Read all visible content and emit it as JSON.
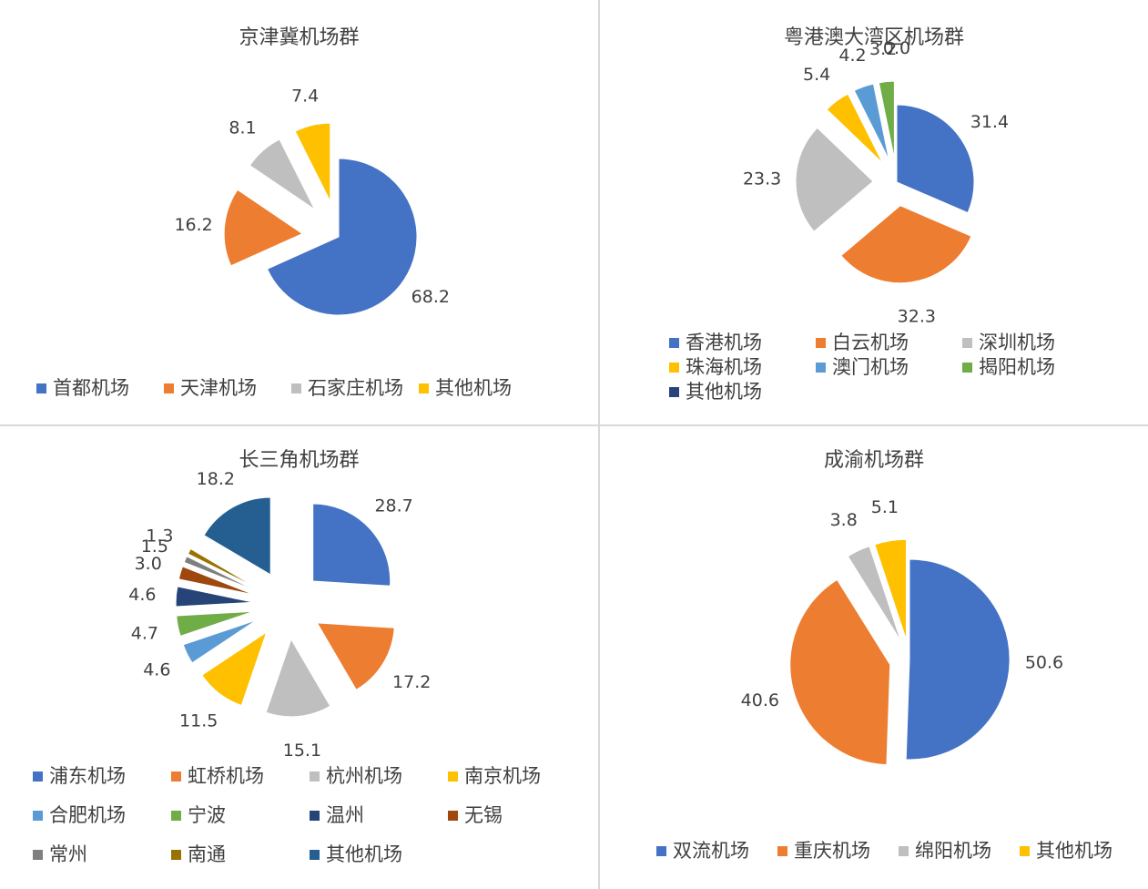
{
  "chart_data": [
    {
      "type": "pie",
      "title": "京津冀机场群",
      "categories": [
        "首都机场",
        "天津机场",
        "石家庄机场",
        "其他机场"
      ],
      "values": [
        68.2,
        16.2,
        8.1,
        7.4
      ],
      "colors": [
        "#4472C4",
        "#ED7D31",
        "#BFBFBF",
        "#FFC000"
      ],
      "legend_position": "bottom"
    },
    {
      "type": "pie",
      "title": "粤港澳大湾区机场群",
      "categories": [
        "香港机场",
        "白云机场",
        "深圳机场",
        "珠海机场",
        "澳门机场",
        "揭阳机场",
        "其他机场"
      ],
      "values": [
        31.4,
        32.3,
        23.3,
        5.4,
        4.2,
        3.2,
        0.0
      ],
      "colors": [
        "#4472C4",
        "#ED7D31",
        "#BFBFBF",
        "#FFC000",
        "#5B9BD5",
        "#70AD47",
        "#264478"
      ],
      "legend_position": "bottom"
    },
    {
      "type": "pie",
      "title": "长三角机场群",
      "categories": [
        "浦东机场",
        "虹桥机场",
        "杭州机场",
        "南京机场",
        "合肥机场",
        "宁波",
        "温州",
        "无锡",
        "常州",
        "南通",
        "其他机场"
      ],
      "values": [
        28.7,
        17.2,
        15.1,
        11.5,
        4.6,
        4.7,
        4.6,
        3.0,
        1.5,
        1.3,
        18.2
      ],
      "colors": [
        "#4472C4",
        "#ED7D31",
        "#BFBFBF",
        "#FFC000",
        "#5B9BD5",
        "#70AD47",
        "#264478",
        "#9E480E",
        "#7F7F7F",
        "#997300",
        "#255E91"
      ],
      "legend_position": "bottom"
    },
    {
      "type": "pie",
      "title": "成渝机场群",
      "categories": [
        "双流机场",
        "重庆机场",
        "绵阳机场",
        "其他机场"
      ],
      "values": [
        50.6,
        40.6,
        3.8,
        5.1
      ],
      "colors": [
        "#4472C4",
        "#ED7D31",
        "#BFBFBF",
        "#FFC000"
      ],
      "legend_position": "bottom"
    }
  ]
}
